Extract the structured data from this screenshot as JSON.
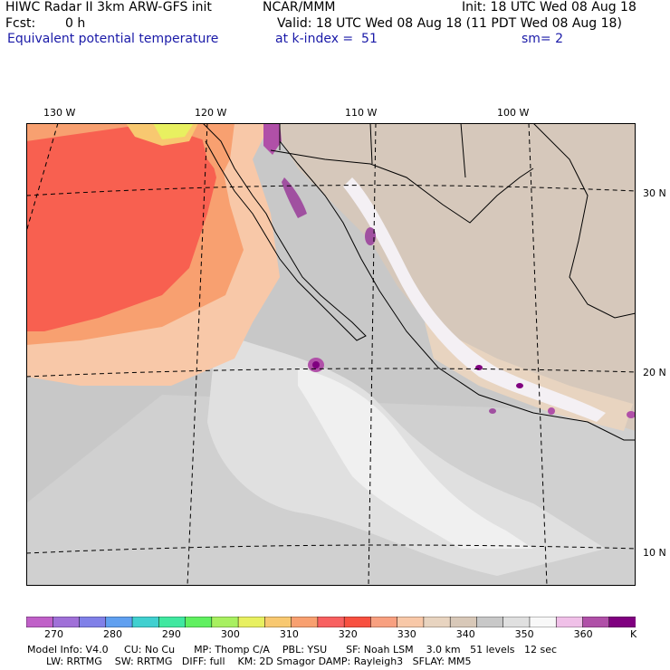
{
  "header": {
    "model": "HIWC Radar II 3km ARW-GFS init",
    "org": "NCAR/MMM",
    "init": "Init: 18 UTC Wed 08 Aug 18",
    "fcst_label": "Fcst:",
    "fcst_value": "0 h",
    "valid": "Valid: 18 UTC Wed 08 Aug 18 (11 PDT Wed 08 Aug 18)",
    "field": "Equivalent potential temperature",
    "level": "at k-index =  51",
    "smooth": "sm= 2"
  },
  "map": {
    "lon_labels": [
      "130 W",
      "120 W",
      "110 W",
      "100 W"
    ],
    "lat_labels": [
      "30 N",
      "20 N",
      "10 N"
    ]
  },
  "colorbar": {
    "labels": [
      "270",
      "280",
      "290",
      "300",
      "310",
      "320",
      "330",
      "340",
      "350",
      "360",
      "K"
    ],
    "colors": [
      "#c060c8",
      "#a070d8",
      "#8080e8",
      "#60a0f0",
      "#40d0d0",
      "#40e8a0",
      "#60f060",
      "#a8f060",
      "#e8f060",
      "#f8c870",
      "#f8a070",
      "#f86060",
      "#f85040",
      "#f8a080",
      "#f8c8a8",
      "#e8d4c0",
      "#d8c8b8",
      "#c8c8c8",
      "#e0e0e0",
      "#f8f8f8",
      "#f0c0e8",
      "#b050a8",
      "#800080"
    ]
  },
  "footer": {
    "line1": "Model Info: V4.0     CU: No Cu      MP: Thomp C/A    PBL: YSU      SF: Noah LSM    3.0 km   51 levels   12 sec",
    "line2": "      LW: RRTMG    SW: RRTMG   DIFF: full    KM: 2D Smagor DAMP: Rayleigh3   SFLAY: MM5"
  }
}
